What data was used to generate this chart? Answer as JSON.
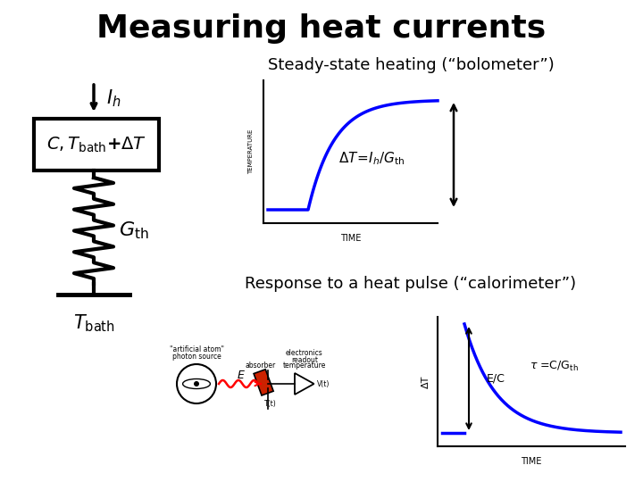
{
  "title": "Measuring heat currents",
  "title_fontsize": 26,
  "title_fontweight": "bold",
  "bg_color": "#ffffff",
  "steady_state_label": "Steady-state heating (“bolometer”)",
  "response_label": "Response to a heat pulse (“calorimeter”)",
  "temp_label": "TEMPERATURE",
  "time_label1": "TIME",
  "time_label2": "TIME",
  "dT_axis_label": "ΔT",
  "ec_label": "E/C",
  "tau_label": "τ =C/Gₜₕ"
}
